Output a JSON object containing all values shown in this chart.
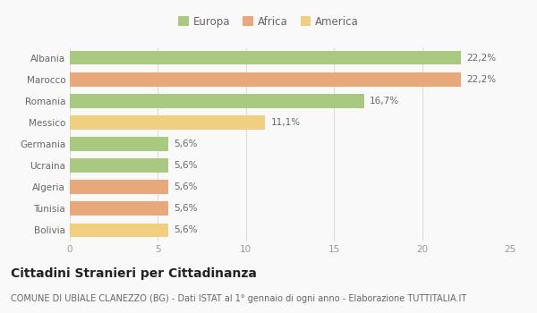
{
  "categories": [
    "Albania",
    "Marocco",
    "Romania",
    "Messico",
    "Germania",
    "Ucraina",
    "Algeria",
    "Tunisia",
    "Bolivia"
  ],
  "values": [
    22.2,
    22.2,
    16.7,
    11.1,
    5.6,
    5.6,
    5.6,
    5.6,
    5.6
  ],
  "labels": [
    "22,2%",
    "22,2%",
    "16,7%",
    "11,1%",
    "5,6%",
    "5,6%",
    "5,6%",
    "5,6%",
    "5,6%"
  ],
  "colors": [
    "#a8c97f",
    "#e8a87c",
    "#a8c97f",
    "#f0d080",
    "#a8c97f",
    "#a8c97f",
    "#e8a87c",
    "#e8a87c",
    "#f0d080"
  ],
  "legend": [
    {
      "label": "Europa",
      "color": "#a8c97f"
    },
    {
      "label": "Africa",
      "color": "#e8a87c"
    },
    {
      "label": "America",
      "color": "#f0d080"
    }
  ],
  "xlim": [
    0,
    25
  ],
  "xticks": [
    0,
    5,
    10,
    15,
    20,
    25
  ],
  "title": "Cittadini Stranieri per Cittadinanza",
  "subtitle": "COMUNE DI UBIALE CLANEZZO (BG) - Dati ISTAT al 1° gennaio di ogni anno - Elaborazione TUTTITALIA.IT",
  "background_color": "#f9f9f9",
  "grid_color": "#dddddd",
  "bar_height": 0.65,
  "title_fontsize": 10,
  "subtitle_fontsize": 7,
  "label_fontsize": 7.5,
  "tick_fontsize": 7.5,
  "legend_fontsize": 8.5
}
